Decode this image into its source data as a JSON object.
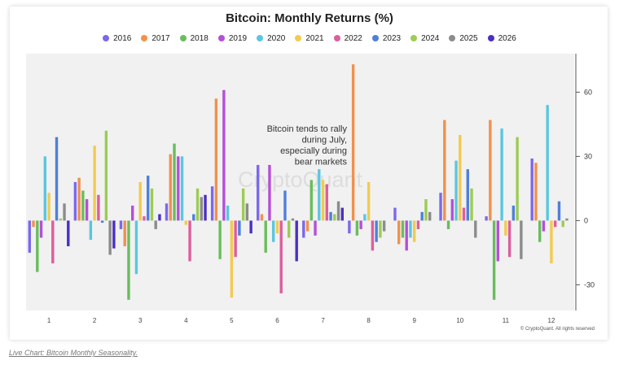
{
  "chart_data": {
    "type": "bar",
    "title": "Bitcoin: Monthly Returns (%)",
    "categories": [
      "1",
      "2",
      "3",
      "4",
      "5",
      "6",
      "7",
      "8",
      "9",
      "10",
      "11",
      "12"
    ],
    "ylim": [
      -42,
      78
    ],
    "yticks": [
      -30,
      0,
      30,
      60
    ],
    "ytick_labels": [
      "-30",
      "0",
      "30",
      "60"
    ],
    "grid": false,
    "legend_position": "top",
    "watermark": "CryptoQuant",
    "annotation": "Bitcoin tends to rally\nduring July,\nespecially during\nbear markets",
    "credit": "© CryptoQuant. All rights reserved",
    "series": [
      {
        "name": "2016",
        "color": "#7b68ee",
        "values": [
          -15,
          18,
          -4,
          8,
          16,
          26,
          -8,
          -6,
          6,
          13,
          2,
          29
        ]
      },
      {
        "name": "2017",
        "color": "#f0914d",
        "values": [
          -3,
          20,
          -12,
          31,
          57,
          3,
          -5,
          73,
          -11,
          47,
          47,
          27
        ]
      },
      {
        "name": "2018",
        "color": "#6abd5d",
        "values": [
          -24,
          14,
          -37,
          36,
          -18,
          -15,
          19,
          -7,
          -8,
          -4,
          -37,
          -10
        ]
      },
      {
        "name": "2019",
        "color": "#b54fd8",
        "values": [
          -8,
          10,
          7,
          30,
          61,
          26,
          -7,
          -4,
          -14,
          10,
          -19,
          -5
        ]
      },
      {
        "name": "2020",
        "color": "#5bc6e0",
        "values": [
          30,
          -9,
          -25,
          30,
          7,
          -10,
          24,
          3,
          -8,
          28,
          43,
          54
        ]
      },
      {
        "name": "2021",
        "color": "#f2ca50",
        "values": [
          13,
          35,
          18,
          -2,
          -36,
          -6,
          19,
          18,
          -10,
          40,
          -7,
          -20
        ]
      },
      {
        "name": "2022",
        "color": "#dd5e9c",
        "values": [
          -20,
          12,
          2,
          -19,
          -17,
          -34,
          17,
          -14,
          -4,
          6,
          -17,
          -3
        ]
      },
      {
        "name": "2023",
        "color": "#4f7fdb",
        "values": [
          39,
          -1,
          21,
          3,
          -7,
          14,
          4,
          -10,
          4,
          24,
          7,
          9
        ]
      },
      {
        "name": "2024",
        "color": "#9ccc53",
        "values": [
          1,
          42,
          15,
          15,
          15,
          -8,
          3,
          -8,
          10,
          15,
          39,
          -3
        ]
      },
      {
        "name": "2025",
        "color": "#8c8c8c",
        "values": [
          8,
          -16,
          -4,
          11,
          8,
          1,
          9,
          -5,
          4,
          -8,
          -18,
          1
        ]
      },
      {
        "name": "2026",
        "color": "#4b2fc4",
        "values": [
          -12,
          -13,
          3,
          12,
          -6,
          -19,
          6,
          null,
          null,
          null,
          null,
          null
        ]
      }
    ]
  },
  "page": {
    "credit": "© CryptoQuant. All rights reserved",
    "caption": "Live Chart: Bitcoin Monthly Seasonality."
  }
}
